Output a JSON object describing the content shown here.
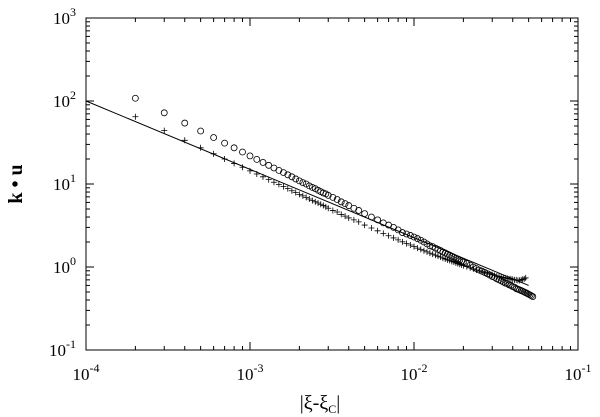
{
  "chart_data": {
    "type": "scatter",
    "title": "",
    "xlabel": "|ξ-ξ_C|",
    "xlabel_parts": {
      "main": "|ξ-ξ",
      "sub": "C",
      "end": "|"
    },
    "ylabel": "k • u",
    "xscale": "log",
    "yscale": "log",
    "xlim": [
      0.0001,
      0.1
    ],
    "ylim": [
      0.1,
      1000
    ],
    "x_ticks": [
      {
        "base": "10",
        "exp": "-4"
      },
      {
        "base": "10",
        "exp": "-3"
      },
      {
        "base": "10",
        "exp": "-2"
      },
      {
        "base": "10",
        "exp": "-1"
      }
    ],
    "y_ticks": [
      {
        "base": "10",
        "exp": "-1"
      },
      {
        "base": "10",
        "exp": "0"
      },
      {
        "base": "10",
        "exp": "1"
      },
      {
        "base": "10",
        "exp": "2"
      },
      {
        "base": "10",
        "exp": "3"
      }
    ],
    "grid": false,
    "legend": "none",
    "series": [
      {
        "marker": "circle",
        "x": [
          0.0002,
          0.0003,
          0.0004,
          0.0005,
          0.0006,
          0.0007,
          0.0008,
          0.0009,
          0.001,
          0.0011,
          0.0012,
          0.0013,
          0.0014,
          0.0015,
          0.0016,
          0.0017,
          0.0018,
          0.0019,
          0.002,
          0.0021,
          0.0022,
          0.0023,
          0.0024,
          0.0025,
          0.0026,
          0.0027,
          0.0028,
          0.0029,
          0.003,
          0.0032,
          0.0034,
          0.0036,
          0.0038,
          0.004,
          0.0043,
          0.0046,
          0.005,
          0.0055,
          0.006,
          0.0065,
          0.007,
          0.0075,
          0.008,
          0.0085,
          0.009,
          0.0095,
          0.01,
          0.0105,
          0.011,
          0.0115,
          0.012,
          0.0125,
          0.013,
          0.0135,
          0.014,
          0.0145,
          0.015,
          0.0155,
          0.016,
          0.0165,
          0.017,
          0.0175,
          0.018,
          0.0185,
          0.019,
          0.0195,
          0.02,
          0.021,
          0.022,
          0.023,
          0.024,
          0.025,
          0.026,
          0.027,
          0.028,
          0.029,
          0.03,
          0.031,
          0.032,
          0.033,
          0.034,
          0.035,
          0.036,
          0.037,
          0.038,
          0.039,
          0.04,
          0.041,
          0.042,
          0.043,
          0.044,
          0.045,
          0.046,
          0.047,
          0.048,
          0.049,
          0.05,
          0.051,
          0.052,
          0.053
        ],
        "y": [
          107.9,
          72.1,
          54.2,
          43.5,
          36.3,
          31.1,
          27.3,
          24.3,
          21.8,
          19.8,
          18.2,
          16.8,
          15.6,
          14.6,
          13.7,
          12.9,
          12.2,
          11.5,
          10.9,
          10.4,
          10,
          9.5,
          9.1,
          8.8,
          8.4,
          8.1,
          7.8,
          7.6,
          7.3,
          6.9,
          6.5,
          6.1,
          5.8,
          5.5,
          5.1,
          4.8,
          4.4,
          4,
          3.7,
          3.4,
          3.2,
          3,
          2.8,
          2.6,
          2.5,
          2.4,
          2.3,
          2.2,
          2.1,
          2,
          1.9,
          1.8,
          1.76,
          1.69,
          1.63,
          1.58,
          1.52,
          1.48,
          1.43,
          1.39,
          1.35,
          1.31,
          1.27,
          1.24,
          1.21,
          1.18,
          1.15,
          1.1,
          1.05,
          1,
          0.96,
          0.92,
          0.89,
          0.86,
          0.83,
          0.8,
          0.77,
          0.75,
          0.72,
          0.7,
          0.68,
          0.66,
          0.64,
          0.63,
          0.61,
          0.6,
          0.58,
          0.57,
          0.55,
          0.54,
          0.53,
          0.52,
          0.51,
          0.5,
          0.49,
          0.48,
          0.47,
          0.46,
          0.45,
          0.44
        ]
      },
      {
        "marker": "plus",
        "x": [
          0.0002,
          0.0003,
          0.0004,
          0.0005,
          0.0006,
          0.0007,
          0.0008,
          0.0009,
          0.001,
          0.0011,
          0.0012,
          0.0013,
          0.0014,
          0.0015,
          0.0016,
          0.0017,
          0.0018,
          0.0019,
          0.002,
          0.0021,
          0.0022,
          0.0023,
          0.0024,
          0.0025,
          0.0026,
          0.0027,
          0.0028,
          0.0029,
          0.003,
          0.0032,
          0.0034,
          0.0036,
          0.0038,
          0.004,
          0.0043,
          0.0046,
          0.005,
          0.0055,
          0.006,
          0.0065,
          0.007,
          0.0075,
          0.008,
          0.0085,
          0.009,
          0.0095,
          0.01,
          0.0105,
          0.011,
          0.0115,
          0.012,
          0.0125,
          0.013,
          0.0135,
          0.014,
          0.0145,
          0.015,
          0.0155,
          0.016,
          0.0165,
          0.017,
          0.0175,
          0.018,
          0.0185,
          0.019,
          0.0195,
          0.02,
          0.021,
          0.022,
          0.023,
          0.024,
          0.025,
          0.026,
          0.027,
          0.028,
          0.029,
          0.03,
          0.031,
          0.032,
          0.033,
          0.034,
          0.035,
          0.036,
          0.037,
          0.038,
          0.039,
          0.04,
          0.041,
          0.042,
          0.043,
          0.044,
          0.045,
          0.046,
          0.047,
          0.048
        ],
        "y": [
          64.6,
          44,
          33.6,
          27.3,
          23.1,
          20,
          17.7,
          15.9,
          14.4,
          13.2,
          12.2,
          11.3,
          10.5,
          9.9,
          9.3,
          8.8,
          8.3,
          7.9,
          7.5,
          7.2,
          6.9,
          6.6,
          6.3,
          6.1,
          5.9,
          5.7,
          5.5,
          5.3,
          5.1,
          4.8,
          4.6,
          4.3,
          4.1,
          3.9,
          3.7,
          3.5,
          3.2,
          2.95,
          2.73,
          2.54,
          2.38,
          2.24,
          2.12,
          2.01,
          1.92,
          1.84,
          1.76,
          1.69,
          1.63,
          1.57,
          1.52,
          1.47,
          1.43,
          1.39,
          1.35,
          1.32,
          1.28,
          1.25,
          1.22,
          1.2,
          1.17,
          1.15,
          1.12,
          1.1,
          1.08,
          1.06,
          1.04,
          1.01,
          0.98,
          0.95,
          0.92,
          0.9,
          0.88,
          0.86,
          0.84,
          0.82,
          0.81,
          0.79,
          0.78,
          0.77,
          0.76,
          0.75,
          0.74,
          0.73,
          0.72,
          0.72,
          0.71,
          0.7,
          0.7,
          0.69,
          0.69,
          0.7,
          0.71,
          0.72,
          0.74
        ]
      },
      {
        "marker": "line",
        "x": [
          0.0001,
          0.05
        ],
        "y": [
          100,
          0.6
        ]
      }
    ]
  }
}
